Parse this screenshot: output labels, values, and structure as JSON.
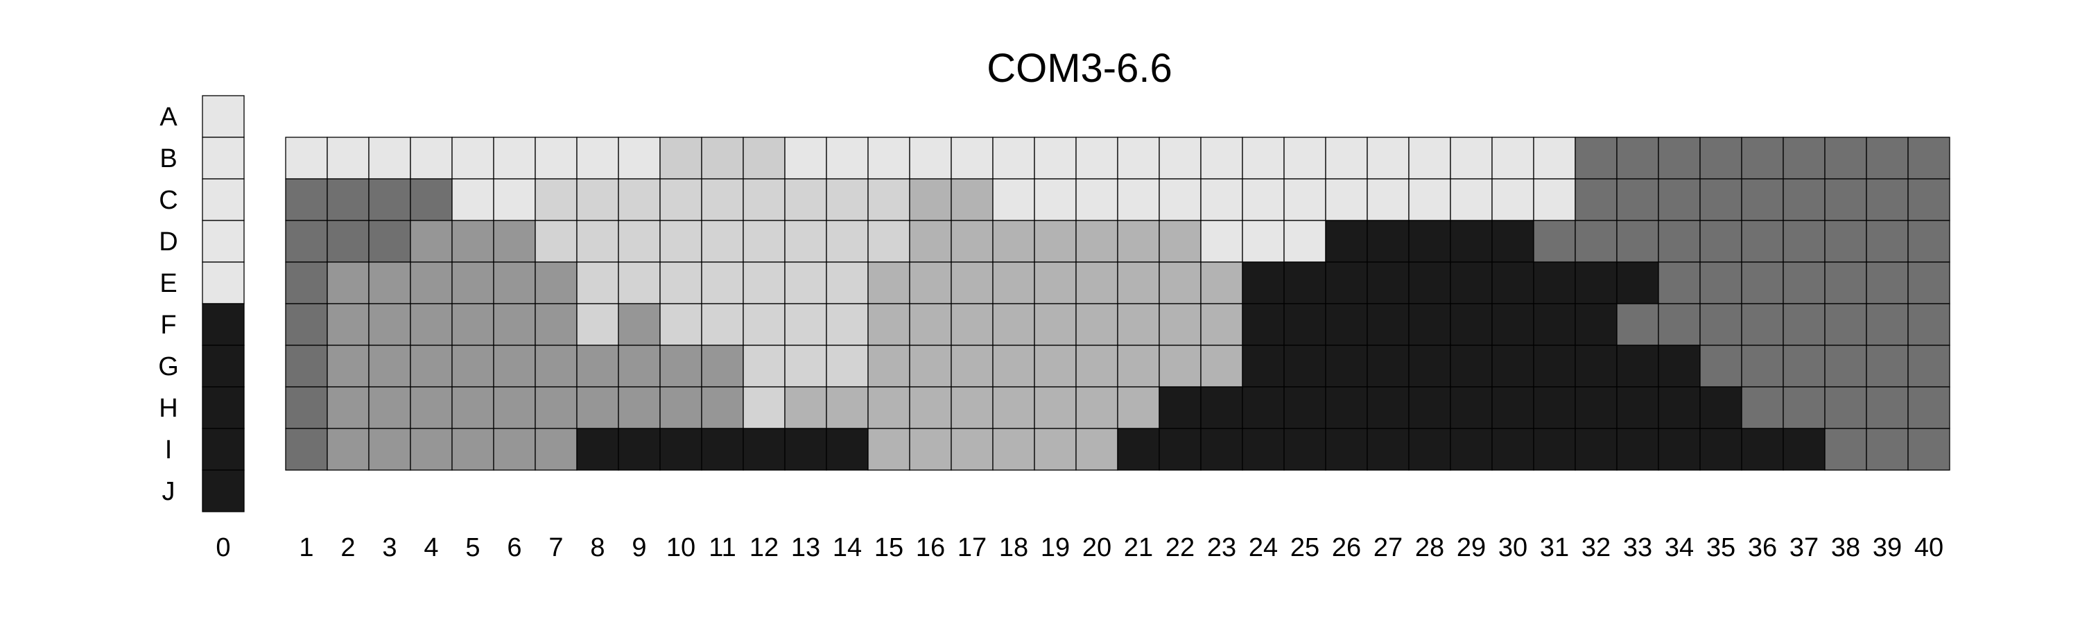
{
  "chart_data": {
    "type": "heatmap",
    "title": "COM3-6.6",
    "rows": [
      "A",
      "B",
      "C",
      "D",
      "E",
      "F",
      "G",
      "H",
      "I",
      "J"
    ],
    "columns": [
      "0",
      "1",
      "2",
      "3",
      "4",
      "5",
      "6",
      "7",
      "8",
      "9",
      "10",
      "11",
      "12",
      "13",
      "14",
      "15",
      "16",
      "17",
      "18",
      "19",
      "20",
      "21",
      "22",
      "23",
      "24",
      "25",
      "26",
      "27",
      "28",
      "29",
      "30",
      "31",
      "32",
      "33",
      "34",
      "35",
      "36",
      "37",
      "38",
      "39",
      "40"
    ],
    "palette": {
      "0": "#e6e6e6",
      "1": "#d3d3d3",
      "2": "#cdcdcd",
      "3": "#b3b3b3",
      "4": "#969696",
      "5": "#707070",
      "6": "#1a1a1a"
    },
    "column_0": [
      0,
      0,
      0,
      0,
      0,
      6,
      6,
      6,
      6,
      6
    ],
    "grid_rows": [
      "B",
      "C",
      "D",
      "E",
      "F",
      "G",
      "H",
      "I"
    ],
    "grid": [
      [
        0,
        0,
        0,
        0,
        0,
        0,
        0,
        0,
        0,
        2,
        2,
        2,
        0,
        0,
        0,
        0,
        0,
        0,
        0,
        0,
        0,
        0,
        0,
        0,
        0,
        0,
        0,
        0,
        0,
        0,
        0,
        5,
        5,
        5,
        5,
        5,
        5,
        5,
        5,
        5
      ],
      [
        5,
        5,
        5,
        5,
        0,
        0,
        1,
        1,
        1,
        1,
        1,
        1,
        1,
        1,
        1,
        3,
        3,
        0,
        0,
        0,
        0,
        0,
        0,
        0,
        0,
        0,
        0,
        0,
        0,
        0,
        0,
        5,
        5,
        5,
        5,
        5,
        5,
        5,
        5,
        5
      ],
      [
        5,
        5,
        5,
        4,
        4,
        4,
        1,
        1,
        1,
        1,
        1,
        1,
        1,
        1,
        1,
        3,
        3,
        3,
        3,
        3,
        3,
        3,
        0,
        0,
        0,
        6,
        6,
        6,
        6,
        6,
        5,
        5,
        5,
        5,
        5,
        5,
        5,
        5,
        5,
        5
      ],
      [
        5,
        4,
        4,
        4,
        4,
        4,
        4,
        1,
        1,
        1,
        1,
        1,
        1,
        1,
        3,
        3,
        3,
        3,
        3,
        3,
        3,
        3,
        3,
        6,
        6,
        6,
        6,
        6,
        6,
        6,
        6,
        6,
        6,
        5,
        5,
        5,
        5,
        5,
        5,
        5
      ],
      [
        5,
        4,
        4,
        4,
        4,
        4,
        4,
        1,
        4,
        1,
        1,
        1,
        1,
        1,
        3,
        3,
        3,
        3,
        3,
        3,
        3,
        3,
        3,
        6,
        6,
        6,
        6,
        6,
        6,
        6,
        6,
        6,
        5,
        5,
        5,
        5,
        5,
        5,
        5,
        5
      ],
      [
        5,
        4,
        4,
        4,
        4,
        4,
        4,
        4,
        4,
        4,
        4,
        1,
        1,
        1,
        3,
        3,
        3,
        3,
        3,
        3,
        3,
        3,
        3,
        6,
        6,
        6,
        6,
        6,
        6,
        6,
        6,
        6,
        6,
        6,
        5,
        5,
        5,
        5,
        5,
        5
      ],
      [
        5,
        4,
        4,
        4,
        4,
        4,
        4,
        4,
        4,
        4,
        4,
        1,
        3,
        3,
        3,
        3,
        3,
        3,
        3,
        3,
        3,
        6,
        6,
        6,
        6,
        6,
        6,
        6,
        6,
        6,
        6,
        6,
        6,
        6,
        6,
        5,
        5,
        5,
        5,
        5
      ],
      [
        5,
        4,
        4,
        4,
        4,
        4,
        4,
        6,
        6,
        6,
        6,
        6,
        6,
        6,
        3,
        3,
        3,
        3,
        3,
        3,
        6,
        6,
        6,
        6,
        6,
        6,
        6,
        6,
        6,
        6,
        6,
        6,
        6,
        6,
        6,
        6,
        6,
        5,
        5,
        5
      ]
    ]
  }
}
